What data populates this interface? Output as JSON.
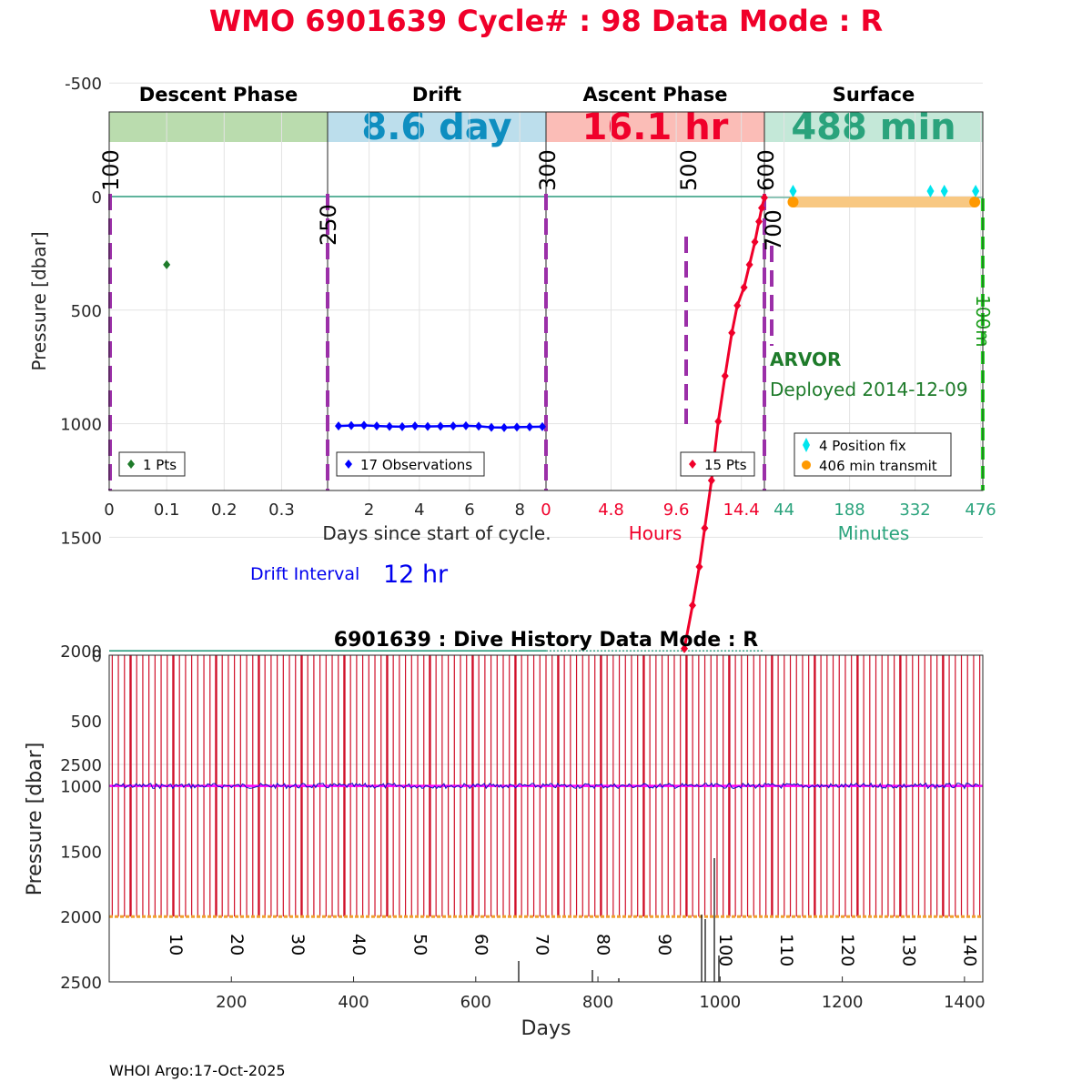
{
  "header": {
    "title": "WMO 6901639   Cycle# : 98   Data Mode : R",
    "title_color": "#f0002a"
  },
  "top": {
    "phases": [
      {
        "label": "Descent Phase",
        "value": "",
        "band_color": "#badcae",
        "value_color": "#000000"
      },
      {
        "label": "Drift",
        "value": "8.6 day",
        "band_color": "#bcdeec",
        "value_color": "#0e8ec0"
      },
      {
        "label": "Ascent Phase",
        "value": "16.1 hr",
        "band_color": "#fbbdb7",
        "value_color": "#f0002a"
      },
      {
        "label": "Surface",
        "value": "488 min",
        "band_color": "#c4e8d8",
        "value_color": "#2aa37c"
      }
    ],
    "ylabel": "Pressure [dbar]",
    "y_ticks": [
      "-500",
      "0",
      "500",
      "1000",
      "1500",
      "2000",
      "2500"
    ],
    "ylim": [
      -600,
      2600
    ],
    "panel_x_ticks": [
      {
        "labels": [
          "0",
          "0.1",
          "0.2",
          "0.3"
        ],
        "color": "#262626"
      },
      {
        "labels": [
          "2",
          "4",
          "6",
          "8"
        ],
        "color": "#262626"
      },
      {
        "labels": [
          "0",
          "4.8",
          "9.6",
          "14.4"
        ],
        "color": "#f0002a"
      },
      {
        "labels": [
          "44",
          "188",
          "332",
          "476"
        ],
        "color": "#2aa37c"
      }
    ],
    "xlabel_days": "Days since start of cycle.",
    "xlabel_hours": "Hours",
    "xlabel_minutes": "Minutes",
    "marker_labels": [
      "100",
      "250",
      "300",
      "500",
      "600",
      "700",
      "100m"
    ],
    "legend_descent": "1 Pts",
    "legend_drift": "17 Observations",
    "legend_ascent": "15 Pts",
    "legend_surface_fix": "4 Position fix",
    "legend_surface_transmit": "406 min transmit",
    "float_type": "ARVOR",
    "deployed": "Deployed 2014-12-09",
    "drift_interval_label": "Drift Interval",
    "drift_interval_value": "12 hr"
  },
  "bottom": {
    "title": "6901639 : Dive History      Data Mode : R",
    "ylabel": "Pressure [dbar]",
    "xlabel": "Days",
    "y_ticks": [
      "0",
      "500",
      "1000",
      "1500",
      "2000",
      "2500"
    ],
    "x_ticks": [
      "200",
      "400",
      "600",
      "800",
      "1000",
      "1200",
      "1400"
    ],
    "cycle_labels": [
      "10",
      "20",
      "30",
      "40",
      "50",
      "60",
      "70",
      "80",
      "90",
      "100",
      "110",
      "120",
      "130",
      "140"
    ]
  },
  "footer": {
    "credit": "WHOI Argo:17-Oct-2025"
  },
  "chart_data": [
    {
      "type": "scatter",
      "title": "Descent Phase",
      "series": [
        {
          "name": "1 Pts",
          "color": "#1e7b2a",
          "x": [
            0.1
          ],
          "y": [
            300
          ]
        }
      ]
    },
    {
      "type": "line",
      "title": "Drift",
      "series": [
        {
          "name": "17 Observations",
          "color": "#0000ff",
          "x": [
            0.5,
            1.0,
            1.5,
            2.0,
            2.5,
            3.0,
            3.5,
            4.0,
            4.5,
            5.0,
            5.5,
            6.0,
            6.5,
            7.0,
            7.5,
            8.0,
            8.5
          ],
          "y": [
            1010,
            1008,
            1007,
            1010,
            1012,
            1013,
            1010,
            1012,
            1011,
            1010,
            1009,
            1011,
            1016,
            1017,
            1015,
            1014,
            1013
          ]
        }
      ]
    },
    {
      "type": "line",
      "title": "Ascent Phase",
      "series": [
        {
          "name": "15 Pts",
          "color": "#f0002a",
          "x": [
            10.2,
            10.8,
            11.3,
            11.7,
            12.2,
            12.7,
            13.2,
            13.7,
            14.1,
            14.6,
            15.0,
            15.4,
            15.7,
            15.9,
            16.1
          ],
          "y": [
            1990,
            1800,
            1630,
            1460,
            1250,
            990,
            790,
            600,
            480,
            400,
            300,
            200,
            110,
            50,
            5
          ]
        }
      ]
    },
    {
      "type": "scatter",
      "title": "Surface",
      "series": [
        {
          "name": "4 Position fix",
          "color": "#00e5ee",
          "x": [
            64,
            371,
            402,
            472
          ],
          "y": [
            -50,
            -50,
            -50,
            -50
          ]
        },
        {
          "name": "406 min transmit",
          "color": "#ff9900",
          "x": [
            64,
            470
          ],
          "y": [
            45,
            45
          ]
        }
      ]
    },
    {
      "type": "line",
      "title": "6901639 : Dive History",
      "xlabel": "Days",
      "ylabel": "Pressure [dbar]",
      "xlim": [
        0,
        1430
      ],
      "ylim": [
        0,
        2500
      ],
      "cycles": 143,
      "drift_pressure": 1000,
      "profile_pressure": 2000,
      "interval_days": 10
    }
  ]
}
